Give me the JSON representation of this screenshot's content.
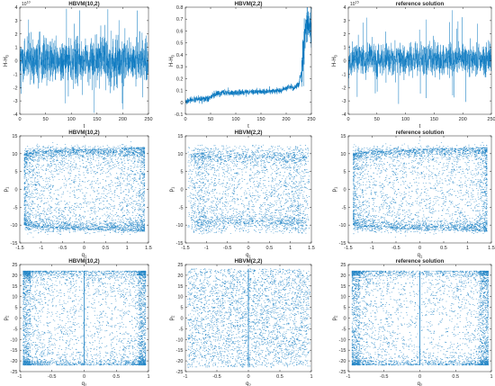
{
  "figure": {
    "accent_color": "#0072BD",
    "axis_color": "#262626",
    "background": "#ffffff"
  },
  "chart_data": [
    {
      "type": "line",
      "title": "HBVM(10,2)",
      "xlabel": "t",
      "ylabel": "H-H",
      "ylabel_sub": "0",
      "exponent": "10",
      "xlim": [
        0,
        250
      ],
      "ylim": [
        -4,
        4
      ],
      "xticks": [
        0,
        50,
        100,
        150,
        200,
        250
      ],
      "yticks": [
        -4,
        -3,
        -2,
        -1,
        0,
        1,
        2,
        3,
        4
      ],
      "series": [
        {
          "kind": "noise",
          "values": [],
          "summary": {
            "mean": 0,
            "std": 0.8,
            "spike_max": 3.9,
            "spike_min": -3.9
          }
        }
      ]
    },
    {
      "type": "line",
      "title": "HBVM(2,2)",
      "xlabel": "t",
      "ylabel": "H-H",
      "ylabel_sub": "0",
      "xlim": [
        0,
        250
      ],
      "ylim": [
        -0.1,
        0.8
      ],
      "xticks": [
        0,
        50,
        100,
        150,
        200,
        250
      ],
      "yticks": [
        -0.1,
        0,
        0.1,
        0.2,
        0.3,
        0.4,
        0.5,
        0.6,
        0.7,
        0.8
      ],
      "series": [
        {
          "kind": "drift",
          "values": [
            [
              0,
              0.0
            ],
            [
              10,
              0.02
            ],
            [
              45,
              0.03
            ],
            [
              60,
              0.07
            ],
            [
              80,
              0.08
            ],
            [
              100,
              0.08
            ],
            [
              130,
              0.09
            ],
            [
              160,
              0.09
            ],
            [
              190,
              0.1
            ],
            [
              205,
              0.13
            ],
            [
              215,
              0.12
            ],
            [
              225,
              0.15
            ],
            [
              232,
              0.3
            ],
            [
              237,
              0.55
            ],
            [
              242,
              0.7
            ],
            [
              246,
              0.65
            ],
            [
              250,
              0.6
            ]
          ]
        }
      ]
    },
    {
      "type": "line",
      "title": "reference solution",
      "xlabel": "t",
      "ylabel": "H-H",
      "ylabel_sub": "0",
      "exponent": "15",
      "xlim": [
        0,
        250
      ],
      "ylim": [
        -4,
        4
      ],
      "xticks": [
        0,
        50,
        100,
        150,
        200,
        250
      ],
      "yticks": [
        -4,
        -3,
        -2,
        -1,
        0,
        1,
        2,
        3,
        4
      ],
      "series": [
        {
          "kind": "noise",
          "values": [],
          "summary": {
            "mean": 0.1,
            "std": 0.6,
            "spike_max": 3.8,
            "spike_min": -3.7
          }
        }
      ]
    },
    {
      "type": "scatter",
      "title": "HBVM(10,2)",
      "xlabel": "q",
      "xlabel_sub": "1",
      "ylabel": "p",
      "ylabel_sub": "1",
      "xlim": [
        -1.5,
        1.5
      ],
      "ylim": [
        -15,
        15
      ],
      "xticks": [
        -1.5,
        -1,
        -0.5,
        0,
        0.5,
        1,
        1.5
      ],
      "yticks": [
        -15,
        -10,
        -5,
        0,
        5,
        10,
        15
      ],
      "series": [
        {
          "kind": "torus",
          "values": [],
          "summary": {
            "q_range": [
              -1.4,
              1.4
            ],
            "p_range": [
              -12,
              12
            ],
            "pattern": "regular"
          }
        }
      ]
    },
    {
      "type": "scatter",
      "title": "HBVM(2,2)",
      "xlabel": "q",
      "xlabel_sub": "1",
      "ylabel": "p",
      "ylabel_sub": "1",
      "xlim": [
        -1.5,
        1.5
      ],
      "ylim": [
        -15,
        15
      ],
      "xticks": [
        -1.5,
        -1,
        -0.5,
        0,
        0.5,
        1,
        1.5
      ],
      "yticks": [
        -15,
        -10,
        -5,
        0,
        5,
        10,
        15
      ],
      "series": [
        {
          "kind": "torus",
          "values": [],
          "summary": {
            "q_range": [
              -1.45,
              1.45
            ],
            "p_range": [
              -12.5,
              12.5
            ],
            "pattern": "scattered"
          }
        }
      ]
    },
    {
      "type": "scatter",
      "title": "reference solution",
      "xlabel": "q",
      "xlabel_sub": "1",
      "ylabel": "p",
      "ylabel_sub": "1",
      "xlim": [
        -1.5,
        1.5
      ],
      "ylim": [
        -15,
        15
      ],
      "xticks": [
        -1.5,
        -1,
        -0.5,
        0,
        0.5,
        1,
        1.5
      ],
      "yticks": [
        -15,
        -10,
        -5,
        0,
        5,
        10,
        15
      ],
      "series": [
        {
          "kind": "torus",
          "values": [],
          "summary": {
            "q_range": [
              -1.4,
              1.4
            ],
            "p_range": [
              -12,
              12
            ],
            "pattern": "regular"
          }
        }
      ]
    },
    {
      "type": "scatter",
      "title": "HBVM(10,2)",
      "xlabel": "q",
      "xlabel_sub": "2",
      "ylabel": "p",
      "ylabel_sub": "2",
      "xlim": [
        -1,
        1
      ],
      "ylim": [
        -25,
        25
      ],
      "xticks": [
        -1,
        -0.5,
        0,
        0.5,
        1
      ],
      "yticks": [
        -25,
        -20,
        -15,
        -10,
        -5,
        0,
        5,
        10,
        15,
        20,
        25
      ],
      "series": [
        {
          "kind": "box",
          "values": [],
          "summary": {
            "q_range": [
              -0.95,
              0.95
            ],
            "p_range": [
              -22,
              22
            ],
            "pattern": "regular"
          }
        }
      ]
    },
    {
      "type": "scatter",
      "title": "HBVM(2,2)",
      "xlabel": "q",
      "xlabel_sub": "2",
      "ylabel": "p",
      "ylabel_sub": "2",
      "xlim": [
        -1,
        1
      ],
      "ylim": [
        -25,
        25
      ],
      "xticks": [
        -1,
        -0.5,
        0,
        0.5,
        1
      ],
      "yticks": [
        -25,
        -20,
        -15,
        -10,
        -5,
        0,
        5,
        10,
        15,
        20,
        25
      ],
      "series": [
        {
          "kind": "box",
          "values": [],
          "summary": {
            "q_range": [
              -0.97,
              0.97
            ],
            "p_range": [
              -23,
              23
            ],
            "pattern": "scattered"
          }
        }
      ]
    },
    {
      "type": "scatter",
      "title": "reference solution",
      "xlabel": "q",
      "xlabel_sub": "2",
      "ylabel": "p",
      "ylabel_sub": "2",
      "xlim": [
        -1,
        1
      ],
      "ylim": [
        -25,
        25
      ],
      "xticks": [
        -1,
        -0.5,
        0,
        0.5,
        1
      ],
      "yticks": [
        -25,
        -20,
        -15,
        -10,
        -5,
        0,
        5,
        10,
        15,
        20,
        25
      ],
      "series": [
        {
          "kind": "box",
          "values": [],
          "summary": {
            "q_range": [
              -0.95,
              0.95
            ],
            "p_range": [
              -22,
              22
            ],
            "pattern": "regular"
          }
        }
      ]
    }
  ]
}
